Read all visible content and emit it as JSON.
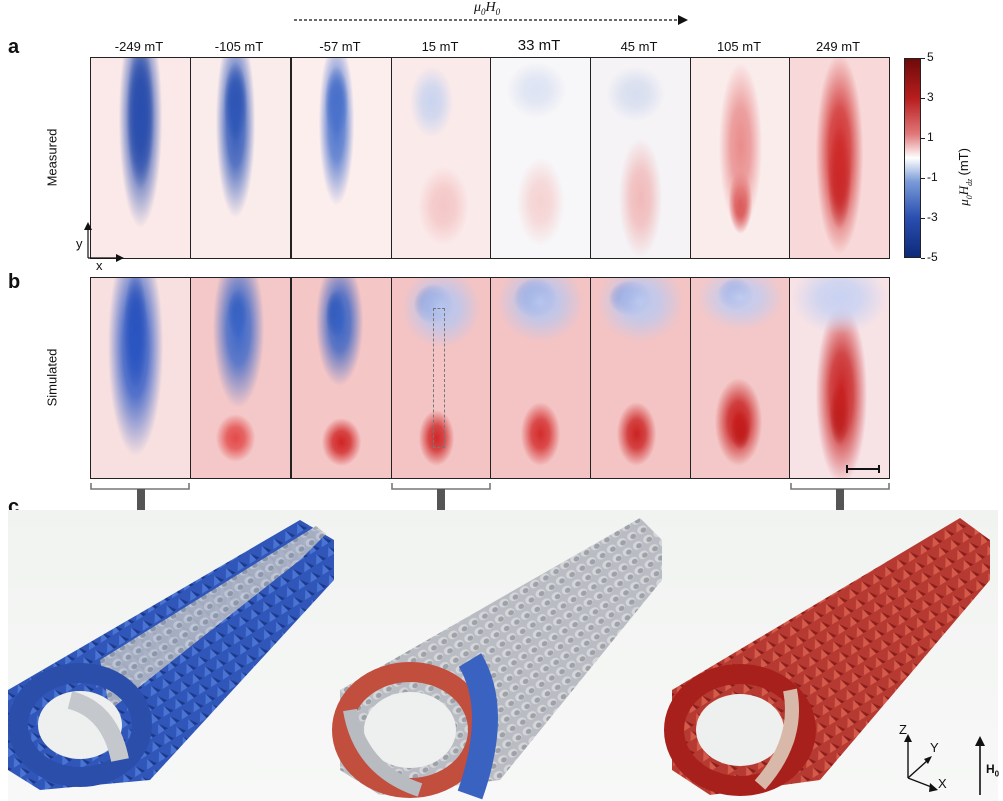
{
  "field_label": {
    "mu": "μ",
    "sub0": "0",
    "H": "H",
    "subH0": "0"
  },
  "panel_labels": {
    "a": "a",
    "b": "b",
    "c": "c"
  },
  "fields": [
    "-249 mT",
    "-105 mT",
    "-57 mT",
    "15 mT",
    "33 mT",
    "45 mT",
    "105 mT",
    "249 mT"
  ],
  "row_labels": {
    "measured": "Measured",
    "simulated": "Simulated"
  },
  "axes": {
    "y": "y",
    "x": "x"
  },
  "colorbar": {
    "ticks": [
      "5",
      "3",
      "1",
      "-1",
      "-3",
      "-5"
    ],
    "title_mu": "μ",
    "title_sub0": "0",
    "title_H": "H",
    "title_subz": "dz",
    "title_unit": "(mT)",
    "range": [
      -5,
      5
    ],
    "colors": {
      "neg": "#0d2a7a",
      "mid": "#ffffff",
      "pos": "#6e0a0a"
    }
  },
  "chart_data": {
    "type": "heatmap",
    "rows": [
      "Measured",
      "Simulated"
    ],
    "columns": [
      "-249 mT",
      "-105 mT",
      "-57 mT",
      "15 mT",
      "33 mT",
      "45 mT",
      "105 mT",
      "249 mT"
    ],
    "colorbar_label": "μ0Hdz (mT)",
    "colorbar_range": [
      -5,
      5
    ]
  },
  "triad": {
    "z": "Z",
    "y": "Y",
    "x": "X",
    "h0": "H",
    "h0sub": "0"
  }
}
